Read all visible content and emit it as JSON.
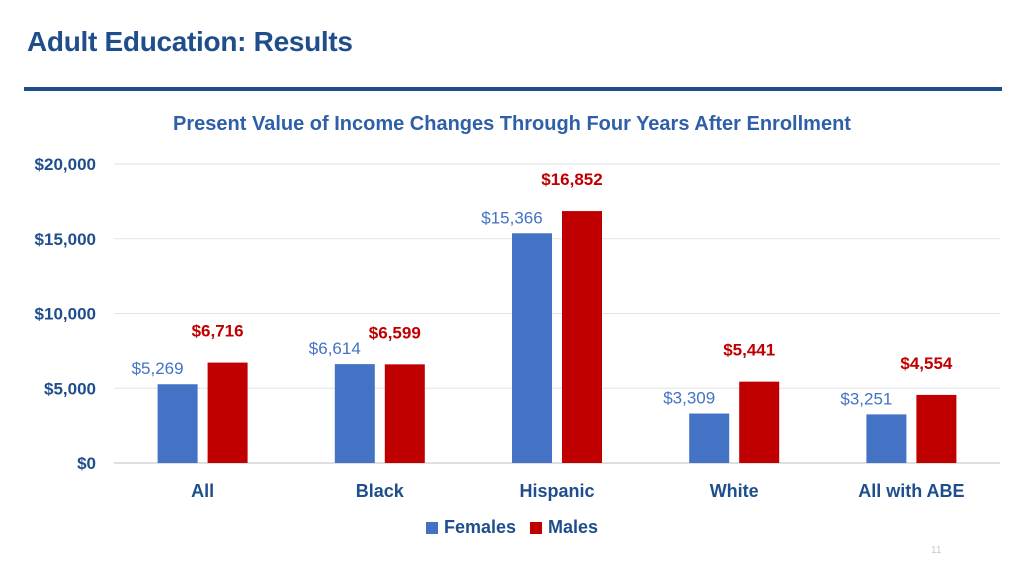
{
  "slide": {
    "title": "Adult Education: Results",
    "page_number": "11"
  },
  "colors": {
    "accent": "#1f4e8c",
    "females": "#4472c4",
    "males": "#c00000",
    "label_females": "#4472c4",
    "label_males": "#c00000"
  },
  "chart_data": {
    "type": "bar",
    "title": "Present Value of Income Changes Through Four Years After Enrollment",
    "xlabel": "",
    "ylabel": "",
    "categories": [
      "All",
      "Black",
      "Hispanic",
      "White",
      "All with ABE"
    ],
    "series": [
      {
        "name": "Females",
        "values": [
          5269,
          6614,
          15366,
          3309,
          3251
        ],
        "labels": [
          "$5,269",
          "$6,614",
          "$15,366",
          "$3,309",
          "$3,251"
        ]
      },
      {
        "name": "Males",
        "values": [
          6716,
          6599,
          16852,
          5441,
          4554
        ],
        "labels": [
          "$6,716",
          "$6,599",
          "$16,852",
          "$5,441",
          "$4,554"
        ]
      }
    ],
    "ylim": [
      0,
      20000
    ],
    "yticks": [
      0,
      5000,
      10000,
      15000,
      20000
    ],
    "ytick_labels": [
      "$0",
      "$5,000",
      "$10,000",
      "$15,000",
      "$20,000"
    ],
    "grid": true,
    "legend": "bottom-center"
  }
}
